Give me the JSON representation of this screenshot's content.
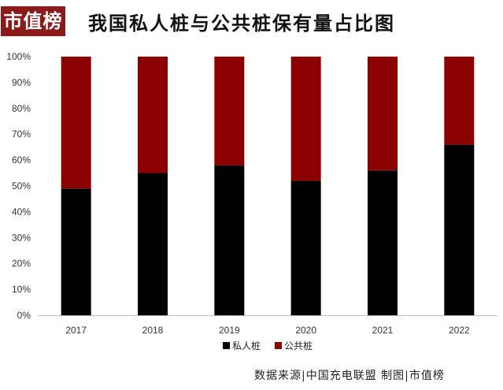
{
  "logo": {
    "text": "市值榜"
  },
  "title": "我国私人桩与公共桩保有量占比图",
  "source": "数据来源|中国充电联盟    制图|市值榜",
  "colors": {
    "private": "#000000",
    "public": "#8b0000",
    "brand": "#8b1a1a"
  },
  "chart_data": {
    "type": "bar",
    "stacked": true,
    "percent": true,
    "categories": [
      "2017",
      "2018",
      "2019",
      "2020",
      "2021",
      "2022"
    ],
    "series": [
      {
        "name": "私人桩",
        "values": [
          49,
          55,
          58,
          52,
          56,
          66
        ]
      },
      {
        "name": "公共桩",
        "values": [
          51,
          45,
          42,
          48,
          44,
          34
        ]
      }
    ],
    "ylim": [
      0,
      100
    ],
    "yticks": [
      "0%",
      "10%",
      "20%",
      "30%",
      "40%",
      "50%",
      "60%",
      "70%",
      "80%",
      "90%",
      "100%"
    ],
    "legend": "bottom",
    "grid": false
  }
}
